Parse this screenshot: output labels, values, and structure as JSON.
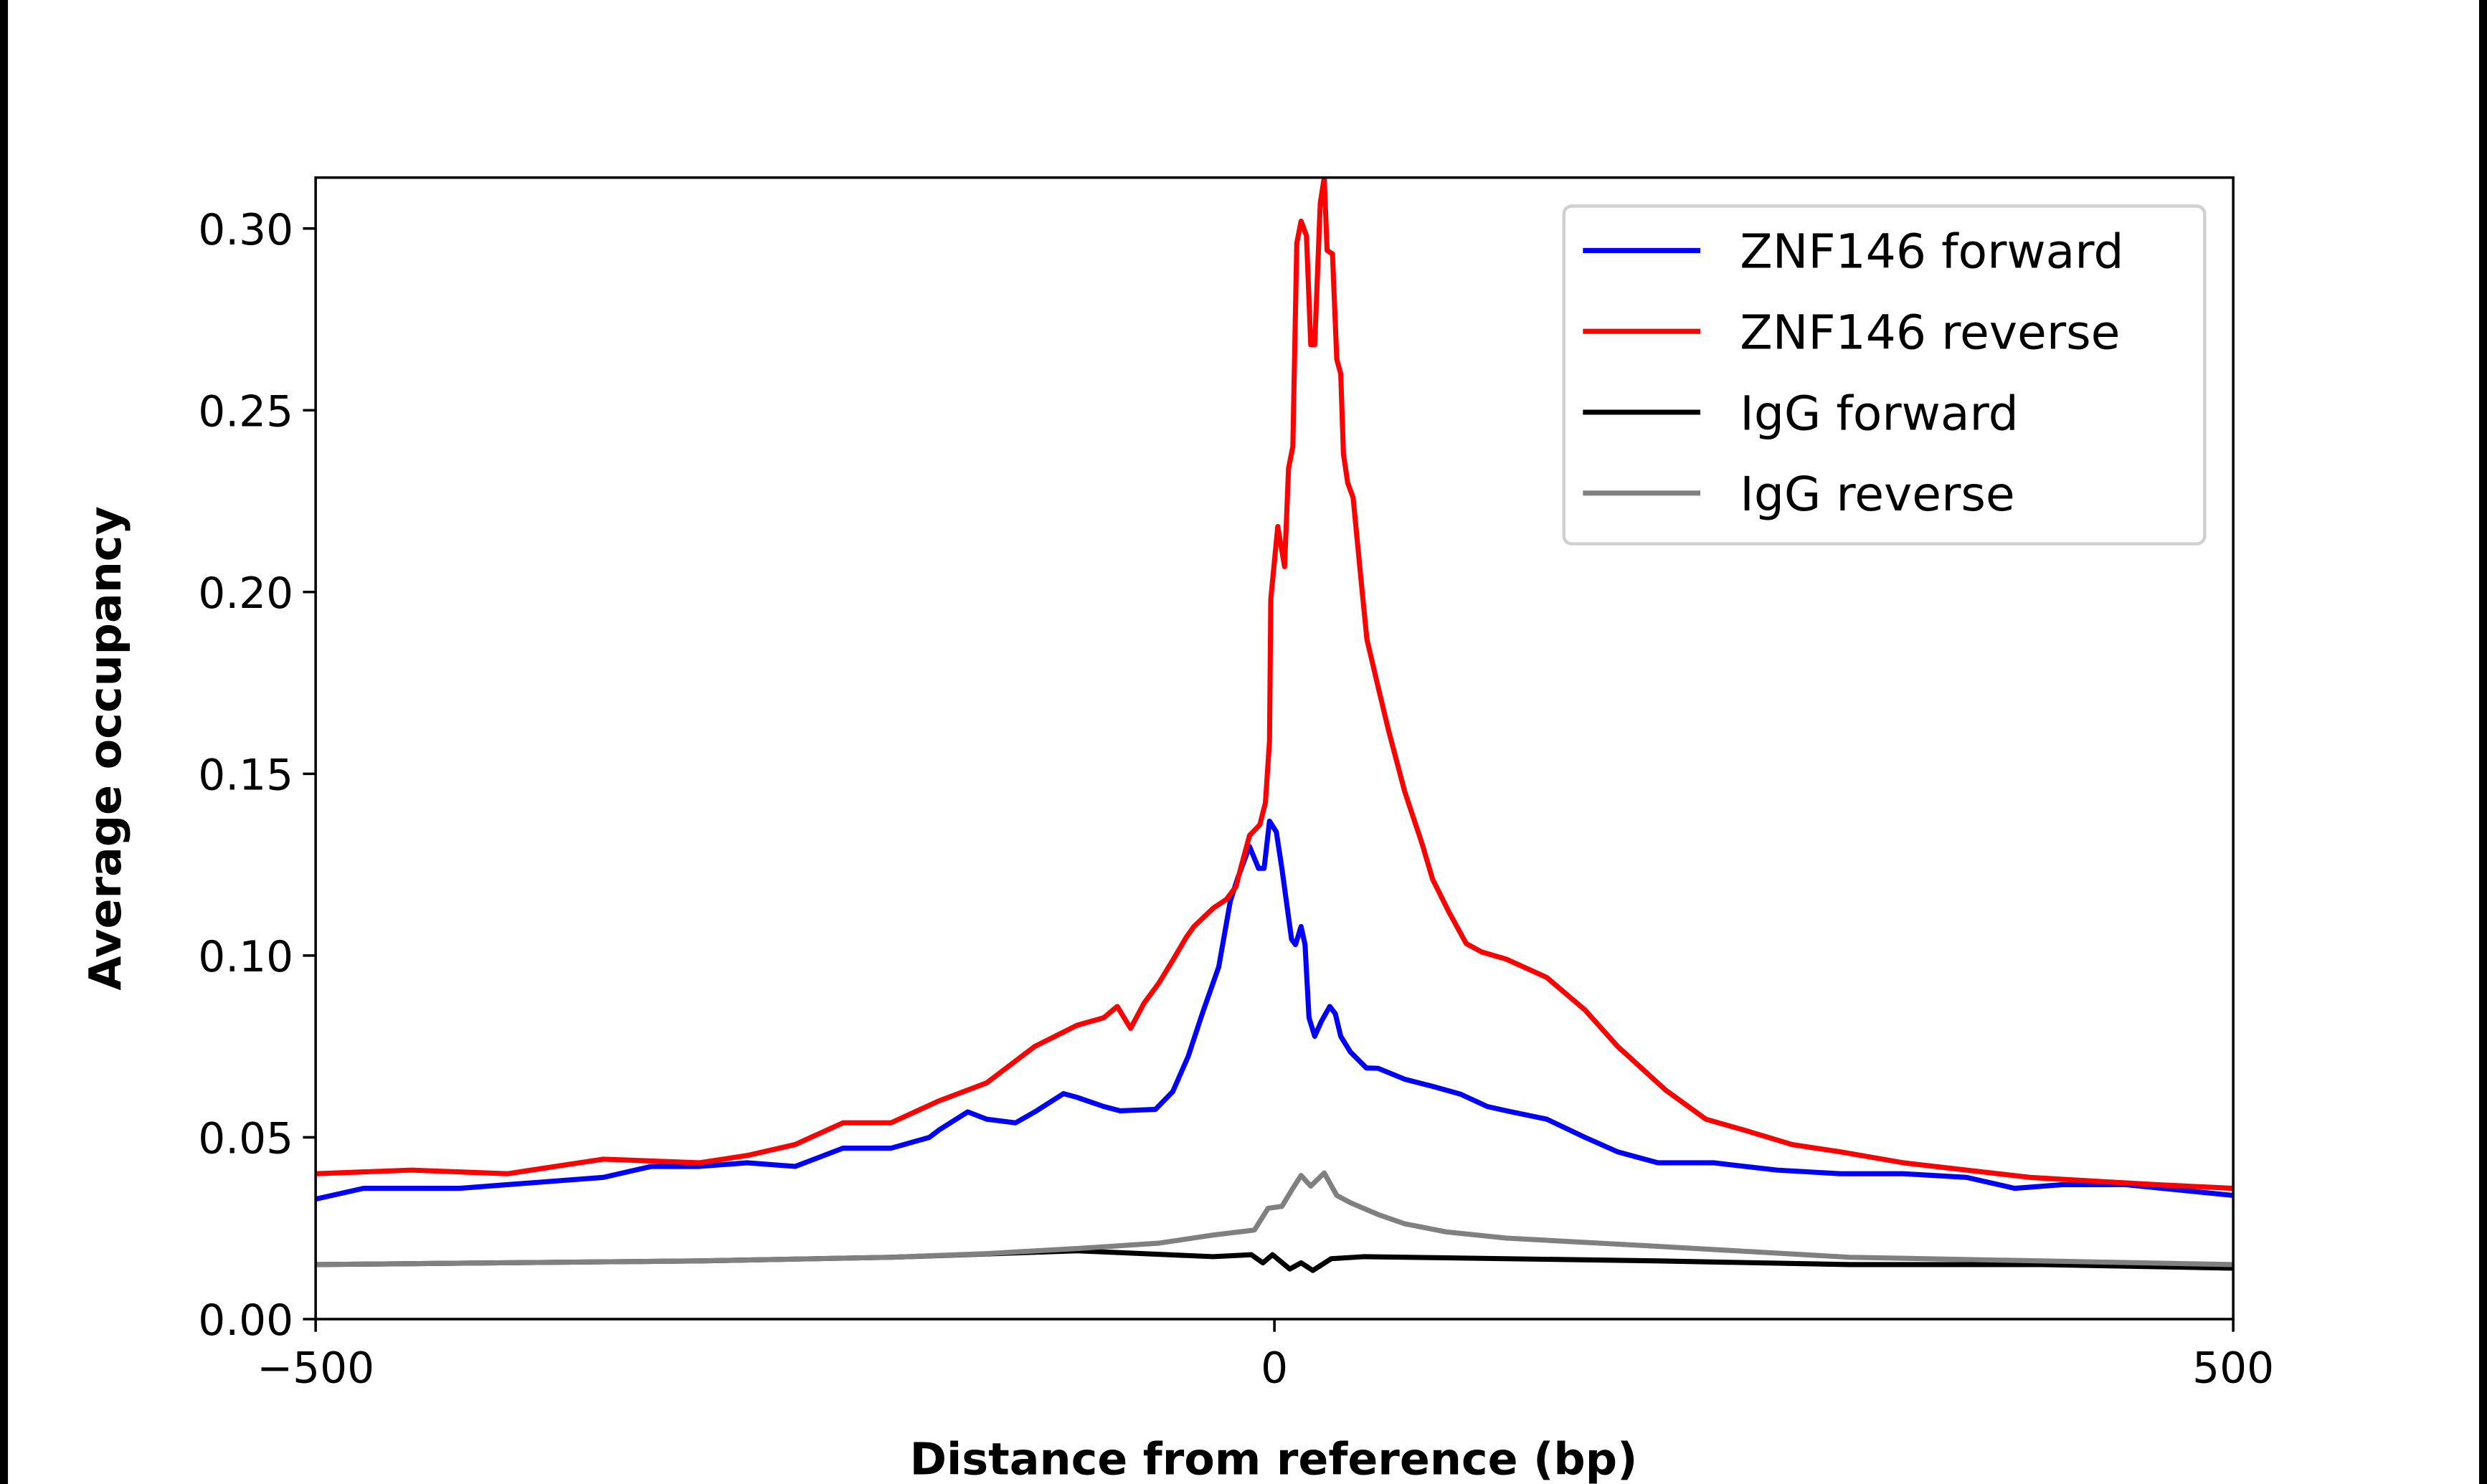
{
  "chart_data": {
    "type": "line",
    "title": "",
    "xlabel": "Distance from reference (bp)",
    "ylabel": "Average occupancy",
    "xlim": [
      -500,
      500
    ],
    "ylim": [
      0,
      0.314
    ],
    "xticks": [
      -500,
      0,
      500
    ],
    "xtick_labels": [
      "−500",
      "0",
      "500"
    ],
    "yticks": [
      0,
      0.05,
      0.1,
      0.15,
      0.2,
      0.25,
      0.3
    ],
    "ytick_labels": [
      "0.00",
      "0.05",
      "0.10",
      "0.15",
      "0.20",
      "0.25",
      "0.30"
    ],
    "grid": false,
    "legend_position": "top-right",
    "series": [
      {
        "name": "ZNF146 forward",
        "color": "#0000ff",
        "x": [
          -500,
          -475,
          -450,
          -425,
          -400,
          -375,
          -350,
          -325,
          -300,
          -275,
          -250,
          -225,
          -200,
          -180,
          -175,
          -160,
          -150,
          -135,
          -125,
          -110,
          -103,
          -89,
          -80.5,
          -62,
          -53,
          -45,
          -37.6,
          -29,
          -23,
          -19,
          -13,
          -8.3,
          -5.4,
          -2.6,
          1,
          3.9,
          8.9,
          11,
          13.9,
          16,
          18,
          21,
          24.6,
          28.9,
          31.8,
          34.6,
          39.6,
          48,
          54,
          68,
          82.5,
          97,
          111,
          121,
          142,
          162,
          179,
          200,
          229,
          262,
          295,
          328,
          361,
          386,
          411,
          444,
          500
        ],
        "y": [
          0.033,
          0.036,
          0.036,
          0.036,
          0.037,
          0.038,
          0.039,
          0.042,
          0.042,
          0.043,
          0.042,
          0.047,
          0.047,
          0.05,
          0.052,
          0.057,
          0.055,
          0.054,
          0.057,
          0.062,
          0.061,
          0.0585,
          0.0573,
          0.0577,
          0.0626,
          0.0722,
          0.084,
          0.0969,
          0.115,
          0.1215,
          0.13,
          0.124,
          0.124,
          0.137,
          0.134,
          0.124,
          0.1045,
          0.103,
          0.108,
          0.103,
          0.0829,
          0.0778,
          0.082,
          0.086,
          0.084,
          0.0778,
          0.0735,
          0.0691,
          0.069,
          0.066,
          0.064,
          0.0619,
          0.0585,
          0.0573,
          0.055,
          0.05,
          0.046,
          0.043,
          0.043,
          0.041,
          0.04,
          0.04,
          0.039,
          0.036,
          0.037,
          0.037,
          0.034
        ]
      },
      {
        "name": "ZNF146 reverse",
        "color": "#ff0000",
        "x": [
          -500,
          -450,
          -400,
          -375,
          -350,
          -300,
          -275,
          -250,
          -225,
          -200,
          -175,
          -150,
          -125,
          -103,
          -89,
          -82,
          -75,
          -68,
          -60.5,
          -53,
          -46,
          -42,
          -32,
          -25,
          -20,
          -17.6,
          -13,
          -7.6,
          -4.7,
          -2.6,
          -1.9,
          1.7,
          5.3,
          7.4,
          9.6,
          11.7,
          13.9,
          16.7,
          18.9,
          21,
          23.9,
          26,
          27.5,
          30.3,
          32.5,
          34.6,
          36,
          38.2,
          41,
          45.4,
          48.2,
          54,
          59.5,
          68,
          76.8,
          82.5,
          91,
          100,
          108,
          121,
          142,
          162,
          179,
          204,
          225,
          245,
          270,
          295,
          328,
          361,
          394,
          427,
          460,
          500
        ],
        "y": [
          0.04,
          0.041,
          0.04,
          0.042,
          0.044,
          0.043,
          0.045,
          0.048,
          0.054,
          0.054,
          0.06,
          0.065,
          0.075,
          0.0808,
          0.0829,
          0.086,
          0.08,
          0.0869,
          0.0923,
          0.0987,
          0.105,
          0.108,
          0.113,
          0.1155,
          0.119,
          0.124,
          0.133,
          0.136,
          0.142,
          0.159,
          0.198,
          0.218,
          0.207,
          0.234,
          0.24,
          0.296,
          0.302,
          0.298,
          0.268,
          0.268,
          0.307,
          0.314,
          0.294,
          0.293,
          0.264,
          0.26,
          0.238,
          0.23,
          0.226,
          0.202,
          0.187,
          0.174,
          0.162,
          0.145,
          0.131,
          0.121,
          0.112,
          0.1033,
          0.101,
          0.099,
          0.094,
          0.085,
          0.075,
          0.063,
          0.055,
          0.052,
          0.048,
          0.046,
          0.043,
          0.041,
          0.039,
          0.038,
          0.037,
          0.036
        ]
      },
      {
        "name": "IgG forward",
        "color": "#000000",
        "x": [
          -500,
          -300,
          -200,
          -103,
          -32,
          -12,
          -6,
          -1,
          8,
          13.9,
          20,
          29.6,
          46.8,
          121,
          200,
          300,
          400,
          500
        ],
        "y": [
          0.015,
          0.016,
          0.017,
          0.0188,
          0.0172,
          0.0177,
          0.0155,
          0.0177,
          0.0138,
          0.0155,
          0.0134,
          0.0166,
          0.0172,
          0.0166,
          0.016,
          0.015,
          0.015,
          0.014
        ]
      },
      {
        "name": "IgG reverse",
        "color": "#808080",
        "x": [
          -500,
          -300,
          -200,
          -150,
          -103,
          -60.5,
          -32,
          -10.4,
          -3.3,
          3.9,
          9.6,
          13.9,
          18.9,
          26,
          32.5,
          39.6,
          54,
          68,
          89.7,
          121,
          200,
          300,
          400,
          500
        ],
        "y": [
          0.015,
          0.016,
          0.017,
          0.018,
          0.0194,
          0.0209,
          0.0231,
          0.0245,
          0.0305,
          0.031,
          0.036,
          0.0395,
          0.0366,
          0.0402,
          0.034,
          0.032,
          0.0288,
          0.0262,
          0.024,
          0.0223,
          0.02,
          0.017,
          0.016,
          0.015
        ]
      }
    ]
  }
}
